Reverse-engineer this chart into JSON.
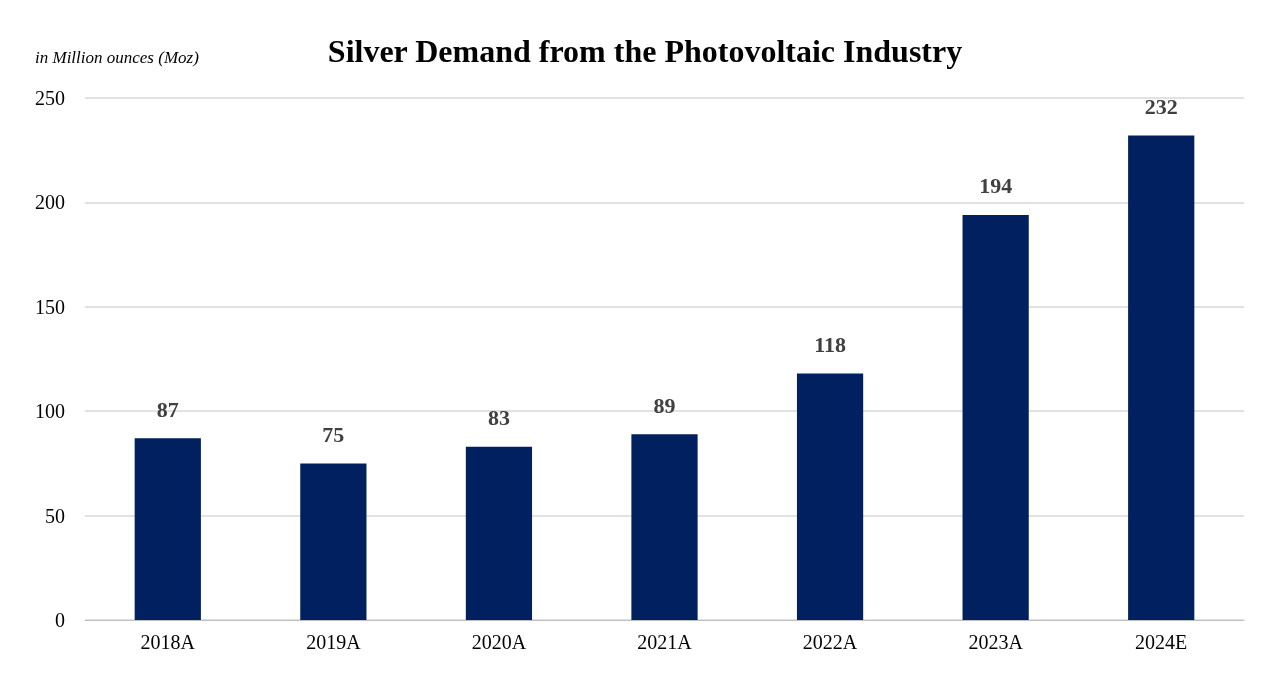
{
  "chart_data": {
    "type": "bar",
    "title": "Silver Demand from the Photovoltaic Industry",
    "ylabel": "in Million ounces (Moz)",
    "categories": [
      "2018A",
      "2019A",
      "2020A",
      "2021A",
      "2022A",
      "2023A",
      "2024E"
    ],
    "values": [
      87,
      75,
      83,
      89,
      118,
      194,
      232
    ],
    "color": "#002060",
    "ylim": [
      0,
      250
    ],
    "yticks": [
      0,
      50,
      100,
      150,
      200,
      250
    ],
    "grid": "y",
    "data_labels": true
  }
}
